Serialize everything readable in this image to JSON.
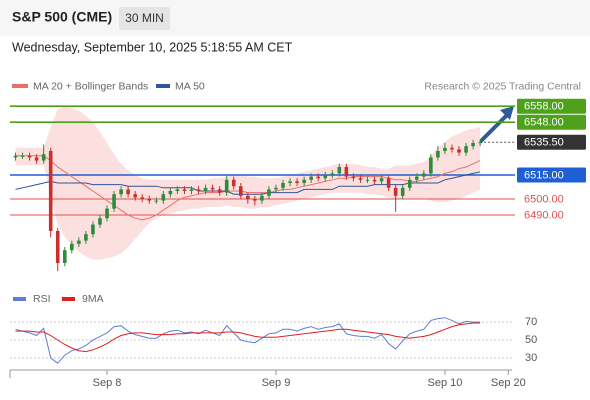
{
  "chart_data": {
    "type": "candlestick",
    "title": "S&P 500 (CME)",
    "interval": "30 MIN",
    "subtitle": "Wednesday, September 10, 2025 5:18:55 AM CET",
    "source": "Research © 2025 Trading Central",
    "categories": [
      null,
      null,
      null,
      null,
      null,
      null,
      null,
      null,
      null,
      null,
      null,
      null,
      null,
      "Sep 8",
      null,
      null,
      null,
      null,
      null,
      null,
      null,
      null,
      null,
      null,
      null,
      null,
      null,
      null,
      null,
      null,
      null,
      null,
      null,
      null,
      null,
      null,
      null,
      "Sep 9",
      null,
      null,
      null,
      null,
      null,
      null,
      null,
      null,
      null,
      null,
      null,
      null,
      null,
      null,
      null,
      null,
      null,
      null,
      null,
      null,
      null,
      null,
      null,
      "Sep 10",
      null,
      null,
      null,
      null,
      null,
      null,
      null,
      null,
      "Sep 20"
    ],
    "open": [
      6526,
      6527,
      6527,
      6526,
      6524,
      6530,
      6480,
      6460,
      6468,
      6472,
      6474,
      6478,
      6484,
      6488,
      6494,
      6503,
      6506,
      6503,
      6501,
      6500,
      6499,
      6499,
      6503,
      6505,
      6506,
      6505,
      6506,
      6505,
      6507,
      6506,
      6504,
      6512,
      6508,
      6502,
      6500,
      6499,
      6502,
      6506,
      6507,
      6510,
      6511,
      6510,
      6512,
      6514,
      6513,
      6515,
      6516,
      6520,
      6514,
      6513,
      6512,
      6512,
      6511,
      6513,
      6507,
      6502,
      6507,
      6512,
      6514,
      6516,
      6526,
      6530,
      6532,
      6531,
      6529,
      6533,
      6535,
      null,
      null,
      null,
      null
    ],
    "high": [
      6529,
      6529,
      6529,
      6528,
      6534,
      6532,
      6482,
      6470,
      6474,
      6476,
      6480,
      6486,
      6490,
      6496,
      6505,
      6508,
      6508,
      6505,
      6503,
      6502,
      6501,
      6505,
      6507,
      6508,
      6508,
      6508,
      6508,
      6509,
      6509,
      6508,
      6515,
      6514,
      6510,
      6504,
      6502,
      6504,
      6508,
      6509,
      6512,
      6513,
      6513,
      6514,
      6516,
      6516,
      6517,
      6518,
      6522,
      6522,
      6516,
      6515,
      6514,
      6514,
      6515,
      6515,
      6509,
      6509,
      6514,
      6516,
      6518,
      6528,
      6533,
      6535,
      6534,
      6533,
      6535,
      6537,
      6537,
      null,
      null,
      null,
      null
    ],
    "low": [
      6524,
      6525,
      6524,
      6522,
      6522,
      6476,
      6455,
      6458,
      6466,
      6470,
      6472,
      6476,
      6482,
      6486,
      6492,
      6501,
      6501,
      6499,
      6498,
      6497,
      6497,
      6497,
      6501,
      6503,
      6503,
      6503,
      6503,
      6503,
      6504,
      6502,
      6502,
      6506,
      6500,
      6497,
      6496,
      6497,
      6500,
      6504,
      6505,
      6508,
      6508,
      6508,
      6510,
      6511,
      6511,
      6513,
      6514,
      6512,
      6511,
      6510,
      6510,
      6509,
      6509,
      6505,
      6492,
      6500,
      6505,
      6510,
      6512,
      6514,
      6524,
      6528,
      6529,
      6527,
      6527,
      6531,
      6533,
      null,
      null,
      null,
      null
    ],
    "close": [
      6527,
      6527,
      6526,
      6524,
      6528,
      6480,
      6460,
      6468,
      6472,
      6474,
      6478,
      6484,
      6488,
      6494,
      6503,
      6506,
      6503,
      6501,
      6500,
      6499,
      6499,
      6503,
      6505,
      6506,
      6505,
      6506,
      6505,
      6507,
      6506,
      6504,
      6512,
      6508,
      6502,
      6500,
      6499,
      6502,
      6506,
      6507,
      6510,
      6511,
      6510,
      6512,
      6514,
      6513,
      6515,
      6516,
      6520,
      6514,
      6513,
      6512,
      6512,
      6511,
      6513,
      6507,
      6502,
      6507,
      6512,
      6514,
      6516,
      6526,
      6530,
      6532,
      6531,
      6529,
      6533,
      6535,
      6535.5,
      null,
      null,
      null,
      null
    ],
    "up_color": "#2e8b3a",
    "down_color": "#c8302c",
    "overlays": [
      {
        "name": "MA 20 + Bollinger Bands",
        "color": "#e8706a",
        "band_color": "#fcdada",
        "values": [
          6527,
          6527,
          6527,
          6527,
          6527,
          6524,
          6520,
          6517,
          6514,
          6511,
          6508,
          6505,
          6502,
          6499,
          6496,
          6493,
          6490,
          6488,
          6487,
          6488,
          6490,
          6493,
          6496,
          6499,
          6501,
          6502,
          6503,
          6504,
          6504,
          6504,
          6505,
          6505,
          6505,
          6504,
          6504,
          6504,
          6504,
          6505,
          6506,
          6506,
          6507,
          6508,
          6509,
          6510,
          6511,
          6512,
          6513,
          6513,
          6514,
          6514,
          6514,
          6514,
          6514,
          6513,
          6512,
          6512,
          6511,
          6511,
          6512,
          6513,
          6514,
          6516,
          6517,
          6519,
          6520,
          6522,
          6524,
          null,
          null,
          null,
          null
        ],
        "upper": [
          6532,
          6532,
          6532,
          6532,
          6532,
          6545,
          6556,
          6558,
          6557,
          6555,
          6552,
          6548,
          6542,
          6535,
          6528,
          6522,
          6518,
          6515,
          6513,
          6512,
          6512,
          6512,
          6512,
          6512,
          6512,
          6512,
          6512,
          6512,
          6513,
          6513,
          6514,
          6515,
          6515,
          6514,
          6514,
          6513,
          6513,
          6513,
          6514,
          6515,
          6516,
          6517,
          6518,
          6519,
          6520,
          6521,
          6522,
          6522,
          6522,
          6521,
          6520,
          6520,
          6519,
          6519,
          6521,
          6521,
          6521,
          6522,
          6523,
          6527,
          6532,
          6536,
          6539,
          6541,
          6543,
          6544,
          6545,
          null,
          null,
          null,
          null
        ],
        "lower": [
          6521,
          6521,
          6521,
          6521,
          6521,
          6503,
          6484,
          6476,
          6471,
          6467,
          6464,
          6462,
          6462,
          6463,
          6464,
          6466,
          6470,
          6475,
          6480,
          6485,
          6488,
          6490,
          6491,
          6492,
          6493,
          6494,
          6494,
          6495,
          6495,
          6495,
          6496,
          6495,
          6495,
          6494,
          6494,
          6495,
          6495,
          6496,
          6497,
          6498,
          6499,
          6500,
          6501,
          6502,
          6503,
          6504,
          6504,
          6504,
          6504,
          6504,
          6503,
          6503,
          6502,
          6501,
          6500,
          6500,
          6500,
          6500,
          6500,
          6499,
          6498,
          6498,
          6499,
          6500,
          6502,
          6504,
          6506,
          null,
          null,
          null,
          null
        ]
      },
      {
        "name": "MA 50",
        "color": "#2f5597",
        "values": [
          6506,
          6507,
          6508,
          6509,
          6510,
          6511,
          6510,
          6510,
          6510,
          6510,
          6510,
          6509,
          6509,
          6509,
          6509,
          6509,
          6508,
          6508,
          6508,
          6508,
          6508,
          6507,
          6507,
          6507,
          6507,
          6507,
          6505,
          6505,
          6505,
          6505,
          6505,
          6503,
          6503,
          6503,
          6503,
          6503,
          6504,
          6504,
          6504,
          6504,
          6504,
          6506,
          6506,
          6506,
          6506,
          6506,
          6508,
          6508,
          6508,
          6508,
          6508,
          6509,
          6509,
          6509,
          6509,
          6509,
          6510,
          6510,
          6510,
          6510,
          6510,
          6512,
          6513,
          6514,
          6515,
          6516,
          6517,
          null,
          null,
          null,
          null
        ]
      }
    ],
    "ylim": [
      6450,
      6566.25
    ],
    "levels": [
      {
        "value": 6558,
        "label": "6558.00",
        "color": "#4ea11a",
        "line": "solid",
        "boxed": true
      },
      {
        "value": 6548,
        "label": "6548.00",
        "color": "#4ea11a",
        "line": "solid",
        "boxed": true
      },
      {
        "value": 6535.5,
        "label": "6535.50",
        "color": "#333333",
        "line": "dotted",
        "boxed": true
      },
      {
        "value": 6515,
        "label": "6515.00",
        "color": "#1f5fd6",
        "line": "solid",
        "boxed": true
      },
      {
        "value": 6500,
        "label": "6500.00",
        "color": "#e05050",
        "line": "solid",
        "boxed": false
      },
      {
        "value": 6490,
        "label": "6490.00",
        "color": "#e05050",
        "line": "solid",
        "boxed": false
      }
    ],
    "rsi": {
      "ylim": [
        22,
        78
      ],
      "yticks": [
        70,
        50,
        30
      ],
      "series": [
        {
          "name": "RSI",
          "color": "#5b7fd6",
          "values": [
            62,
            60,
            58,
            55,
            63,
            30,
            24,
            33,
            38,
            40,
            44,
            50,
            54,
            58,
            65,
            66,
            60,
            56,
            54,
            52,
            52,
            57,
            60,
            61,
            58,
            59,
            57,
            61,
            58,
            55,
            66,
            58,
            50,
            48,
            47,
            52,
            57,
            58,
            62,
            62,
            60,
            63,
            65,
            62,
            64,
            65,
            68,
            57,
            55,
            54,
            54,
            52,
            56,
            46,
            40,
            49,
            57,
            60,
            62,
            72,
            74,
            75,
            72,
            68,
            71,
            70,
            70,
            null,
            null,
            null,
            null
          ]
        },
        {
          "name": "9MA",
          "color": "#e02020",
          "values": [
            60,
            60,
            60,
            59,
            59,
            55,
            50,
            45,
            41,
            38,
            37,
            39,
            42,
            46,
            51,
            55,
            57,
            58,
            58,
            57,
            56,
            56,
            56,
            57,
            57,
            58,
            58,
            58,
            58,
            58,
            59,
            59,
            58,
            56,
            54,
            53,
            53,
            53,
            54,
            55,
            56,
            57,
            58,
            59,
            60,
            61,
            62,
            62,
            61,
            60,
            59,
            58,
            57,
            56,
            54,
            53,
            52,
            53,
            54,
            56,
            59,
            62,
            65,
            67,
            68,
            69,
            69,
            null,
            null,
            null,
            null
          ]
        }
      ]
    }
  }
}
